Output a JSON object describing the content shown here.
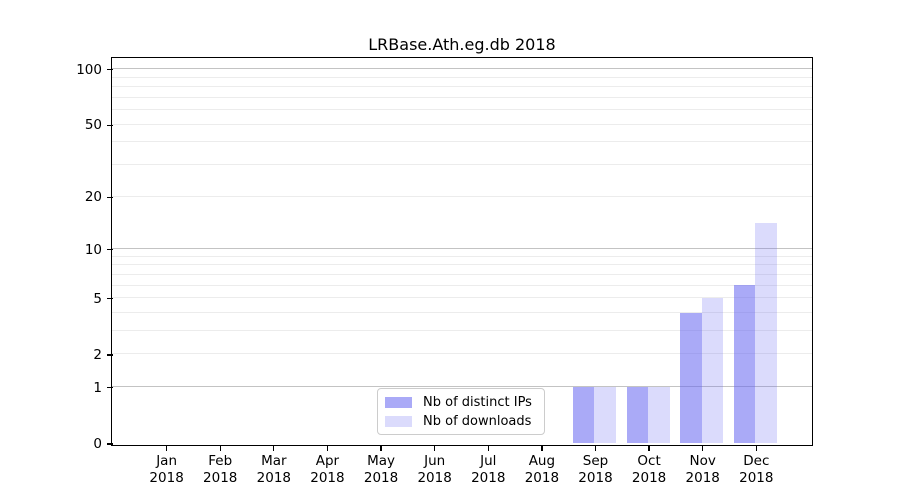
{
  "chart_data": {
    "type": "bar",
    "title": "LRBase.Ath.eg.db 2018",
    "categories": [
      "Jan",
      "Feb",
      "Mar",
      "Apr",
      "May",
      "Jun",
      "Jul",
      "Aug",
      "Sep",
      "Oct",
      "Nov",
      "Dec"
    ],
    "category_year": "2018",
    "series": [
      {
        "name": "Nb of distinct IPs",
        "color": "rgba(100,100,240,0.55)",
        "values": [
          0,
          0,
          0,
          0,
          0,
          0,
          0,
          0,
          1,
          1,
          4,
          6
        ]
      },
      {
        "name": "Nb of downloads",
        "color": "rgba(100,100,240,0.23)",
        "values": [
          0,
          0,
          0,
          0,
          0,
          0,
          0,
          0,
          1,
          1,
          5,
          14
        ]
      }
    ],
    "yscale": "log1p",
    "ylim": [
      0,
      114.4
    ],
    "yticks": [
      0,
      1,
      2,
      5,
      10,
      20,
      50,
      100
    ],
    "major_grid_values": [
      1,
      10,
      100
    ],
    "minor_grid_values": [
      2,
      3,
      4,
      5,
      6,
      7,
      8,
      9,
      20,
      30,
      40,
      50,
      60,
      70,
      80,
      90
    ],
    "grid": true,
    "legend_position": "lower center",
    "xlabel": "",
    "ylabel": ""
  },
  "colors": {
    "axis": "#000000",
    "major_grid": "#c3c3c3",
    "minor_grid": "#ececec",
    "background": "#ffffff",
    "bar_base": "#6464f0"
  }
}
